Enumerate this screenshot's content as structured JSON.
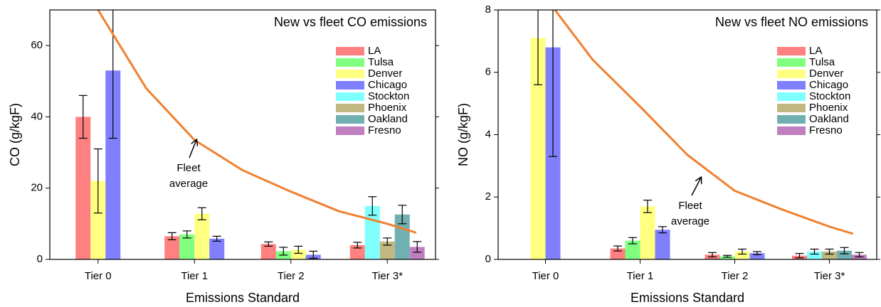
{
  "chart_data": [
    {
      "type": "bar",
      "title": "New vs fleet CO emissions",
      "xlabel": "Emissions Standard",
      "ylabel": "CO (g/kgF)",
      "categories": [
        "Tier 0",
        "Tier 1",
        "Tier 2",
        "Tier 3*"
      ],
      "ylim": [
        0,
        70
      ],
      "yticks": [
        0,
        20,
        40,
        60
      ],
      "legend": "upper right",
      "series": [
        {
          "name": "LA",
          "color": "#ff8080",
          "values": [
            40,
            6.5,
            4.3,
            4
          ],
          "errors": [
            6,
            1,
            0.6,
            0.8
          ]
        },
        {
          "name": "Tulsa",
          "color": "#80ff80",
          "values": [
            null,
            7,
            2.3,
            null
          ],
          "errors": [
            null,
            1,
            1.1,
            null
          ]
        },
        {
          "name": "Denver",
          "color": "#ffff80",
          "values": [
            22,
            12.8,
            2.7,
            null
          ],
          "errors": [
            9,
            1.7,
            1,
            null
          ]
        },
        {
          "name": "Chicago",
          "color": "#8080ff",
          "values": [
            53,
            5.8,
            1.3,
            null
          ],
          "errors": [
            19,
            0.7,
            1,
            null
          ]
        },
        {
          "name": "Stockton",
          "color": "#80ffff",
          "values": [
            null,
            null,
            null,
            15
          ],
          "errors": [
            null,
            null,
            null,
            2.6
          ]
        },
        {
          "name": "Phoenix",
          "color": "#c0b880",
          "values": [
            null,
            null,
            null,
            5
          ],
          "errors": [
            null,
            null,
            null,
            1
          ]
        },
        {
          "name": "Oakland",
          "color": "#70b0b0",
          "values": [
            null,
            null,
            null,
            12.6
          ],
          "errors": [
            null,
            null,
            null,
            2.6
          ]
        },
        {
          "name": "Fresno",
          "color": "#c080c0",
          "values": [
            null,
            null,
            null,
            3.5
          ],
          "errors": [
            null,
            null,
            null,
            1.5
          ]
        }
      ],
      "curve": {
        "color": "#f08030",
        "x": [
          0,
          0.5,
          1,
          1.5,
          2,
          2.5,
          3,
          3.3
        ],
        "values": [
          70,
          48,
          33.5,
          25,
          19,
          13.5,
          10,
          7.5
        ]
      },
      "annotation": [
        "Fleet",
        "average"
      ]
    },
    {
      "type": "bar",
      "title": "New vs fleet NO emissions",
      "xlabel": "Emissions Standard",
      "ylabel": "NO (g/kgF)",
      "categories": [
        "Tier 0",
        "Tier 1",
        "Tier 2",
        "Tier 3*"
      ],
      "ylim": [
        0,
        8
      ],
      "yticks": [
        0,
        2,
        4,
        6,
        8
      ],
      "legend": "upper right",
      "series": [
        {
          "name": "LA",
          "color": "#ff8080",
          "values": [
            null,
            0.35,
            0.15,
            0.12
          ],
          "errors": [
            null,
            0.08,
            0.07,
            0.07
          ]
        },
        {
          "name": "Tulsa",
          "color": "#80ff80",
          "values": [
            null,
            0.6,
            0.1,
            null
          ],
          "errors": [
            null,
            0.1,
            0.03,
            null
          ]
        },
        {
          "name": "Denver",
          "color": "#ffff80",
          "values": [
            7.1,
            1.7,
            0.25,
            null
          ],
          "errors": [
            1.5,
            0.2,
            0.08,
            null
          ]
        },
        {
          "name": "Chicago",
          "color": "#8080ff",
          "values": [
            6.8,
            0.95,
            0.2,
            null
          ],
          "errors": [
            3.5,
            0.1,
            0.05,
            null
          ]
        },
        {
          "name": "Stockton",
          "color": "#80ffff",
          "values": [
            null,
            null,
            null,
            0.25
          ],
          "errors": [
            null,
            null,
            null,
            0.08
          ]
        },
        {
          "name": "Phoenix",
          "color": "#c0b880",
          "values": [
            null,
            null,
            null,
            0.25
          ],
          "errors": [
            null,
            null,
            null,
            0.08
          ]
        },
        {
          "name": "Oakland",
          "color": "#70b0b0",
          "values": [
            null,
            null,
            null,
            0.28
          ],
          "errors": [
            null,
            null,
            null,
            0.1
          ]
        },
        {
          "name": "Fresno",
          "color": "#c080c0",
          "values": [
            null,
            null,
            null,
            0.15
          ],
          "errors": [
            null,
            null,
            null,
            0.07
          ]
        }
      ],
      "curve": {
        "color": "#f08030",
        "x": [
          0.1,
          0.5,
          1,
          1.5,
          2,
          2.5,
          3,
          3.25
        ],
        "values": [
          8,
          6.4,
          4.9,
          3.35,
          2.2,
          1.6,
          1.05,
          0.82
        ]
      },
      "annotation": [
        "Fleet",
        "average"
      ]
    }
  ]
}
